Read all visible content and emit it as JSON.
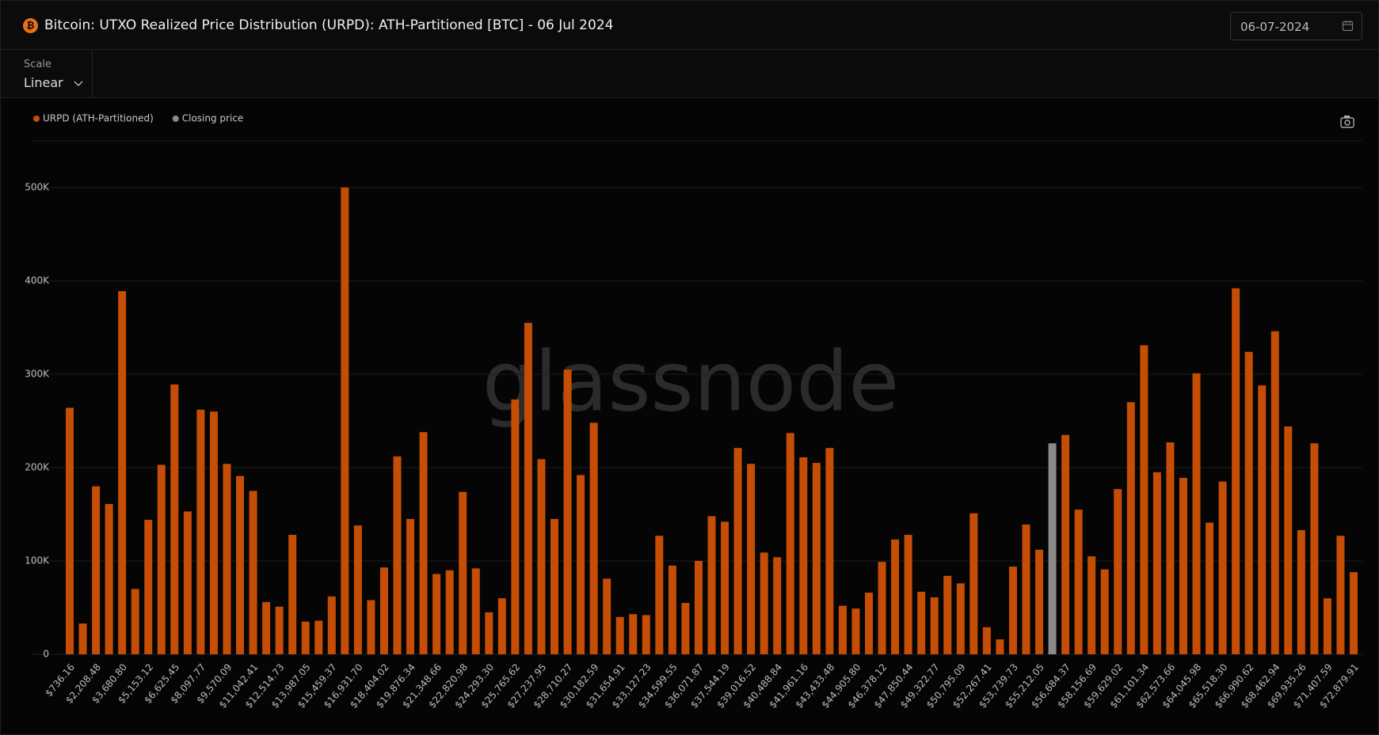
{
  "header": {
    "title": "Bitcoin: UTXO Realized Price Distribution (URPD): ATH-Partitioned [BTC] - 06 Jul 2024",
    "date": "06-07-2024"
  },
  "controls": {
    "scale_label": "Scale",
    "scale_value": "Linear"
  },
  "watermark": "glassnode",
  "chart_data": {
    "type": "bar",
    "categories": [
      "$736.16",
      null,
      "$2,208.48",
      null,
      "$3,680.80",
      null,
      "$5,153.12",
      null,
      "$6,625.45",
      null,
      "$8,097.77",
      null,
      "$9,570.09",
      null,
      "$11,042.41",
      null,
      "$12,514.73",
      null,
      "$13,987.05",
      null,
      "$15,459.37",
      null,
      "$16,931.70",
      null,
      "$18,404.02",
      null,
      "$19,876.34",
      null,
      "$21,348.66",
      null,
      "$22,820.98",
      null,
      "$24,293.30",
      null,
      "$25,765.62",
      null,
      "$27,237.95",
      null,
      "$28,710.27",
      null,
      "$30,182.59",
      null,
      "$31,654.91",
      null,
      "$33,127.23",
      null,
      "$34,599.55",
      null,
      "$36,071.87",
      null,
      "$37,544.19",
      null,
      "$39,016.52",
      null,
      "$40,488.84",
      null,
      "$41,961.16",
      null,
      "$43,433.48",
      null,
      "$44,905.80",
      null,
      "$46,378.12",
      null,
      "$47,850.44",
      null,
      "$49,322.77",
      null,
      "$50,795.09",
      null,
      "$52,267.41",
      null,
      "$53,739.73",
      null,
      "$55,212.05",
      null,
      "$56,684.37",
      null,
      "$58,156.69",
      null,
      "$59,629.02",
      null,
      "$61,101.34",
      null,
      "$62,573.66",
      null,
      "$64,045.98",
      null,
      "$65,518.30",
      null,
      "$66,990.62",
      null,
      "$68,462.94",
      null,
      "$69,935.26",
      null,
      "$71,407.59",
      null,
      "$72,879.91"
    ],
    "series": [
      {
        "name": "URPD (ATH-Partitioned)",
        "color": "#c64d05",
        "values": [
          264000,
          33000,
          180000,
          161000,
          389000,
          70000,
          144000,
          203000,
          289000,
          153000,
          262000,
          260000,
          204000,
          191000,
          175000,
          56000,
          51000,
          128000,
          35000,
          36000,
          62000,
          500000,
          138000,
          58000,
          93000,
          212000,
          145000,
          238000,
          86000,
          90000,
          174000,
          92000,
          45000,
          60000,
          273000,
          355000,
          209000,
          145000,
          305000,
          192000,
          248000,
          81000,
          40000,
          43000,
          42000,
          127000,
          95000,
          55000,
          100000,
          148000,
          142000,
          221000,
          204000,
          109000,
          104000,
          237000,
          211000,
          205000,
          221000,
          52000,
          49000,
          66000,
          99000,
          123000,
          128000,
          67000,
          61000,
          84000,
          76000,
          151000,
          29000,
          16000,
          94000,
          139000,
          112000,
          null,
          235000,
          155000,
          105000,
          91000,
          177000,
          270000,
          331000,
          195000,
          227000,
          189000,
          301000,
          141000,
          185000,
          392000,
          324000,
          288000,
          346000,
          244000,
          133000,
          226000,
          60000,
          127000,
          88000
        ]
      },
      {
        "name": "Closing price",
        "color": "#8a8a8a",
        "values": [
          null,
          null,
          null,
          null,
          null,
          null,
          null,
          null,
          null,
          null,
          null,
          null,
          null,
          null,
          null,
          null,
          null,
          null,
          null,
          null,
          null,
          null,
          null,
          null,
          null,
          null,
          null,
          null,
          null,
          null,
          null,
          null,
          null,
          null,
          null,
          null,
          null,
          null,
          null,
          null,
          null,
          null,
          null,
          null,
          null,
          null,
          null,
          null,
          null,
          null,
          null,
          null,
          null,
          null,
          null,
          null,
          null,
          null,
          null,
          null,
          null,
          null,
          null,
          null,
          null,
          null,
          null,
          null,
          null,
          null,
          null,
          null,
          null,
          null,
          null,
          226000,
          null,
          null,
          null,
          null,
          null,
          null,
          null,
          null,
          null,
          null,
          null,
          null,
          null,
          null,
          null,
          null,
          null,
          null,
          null,
          null,
          null,
          null,
          null
        ]
      }
    ],
    "ylim": [
      0,
      550000
    ],
    "yticks": [
      {
        "value": 0,
        "label": "0"
      },
      {
        "value": 100000,
        "label": "100K"
      },
      {
        "value": 200000,
        "label": "200K"
      },
      {
        "value": 300000,
        "label": "300K"
      },
      {
        "value": 400000,
        "label": "400K"
      },
      {
        "value": 500000,
        "label": "500K"
      }
    ],
    "grid": true,
    "legend": "top-left"
  }
}
